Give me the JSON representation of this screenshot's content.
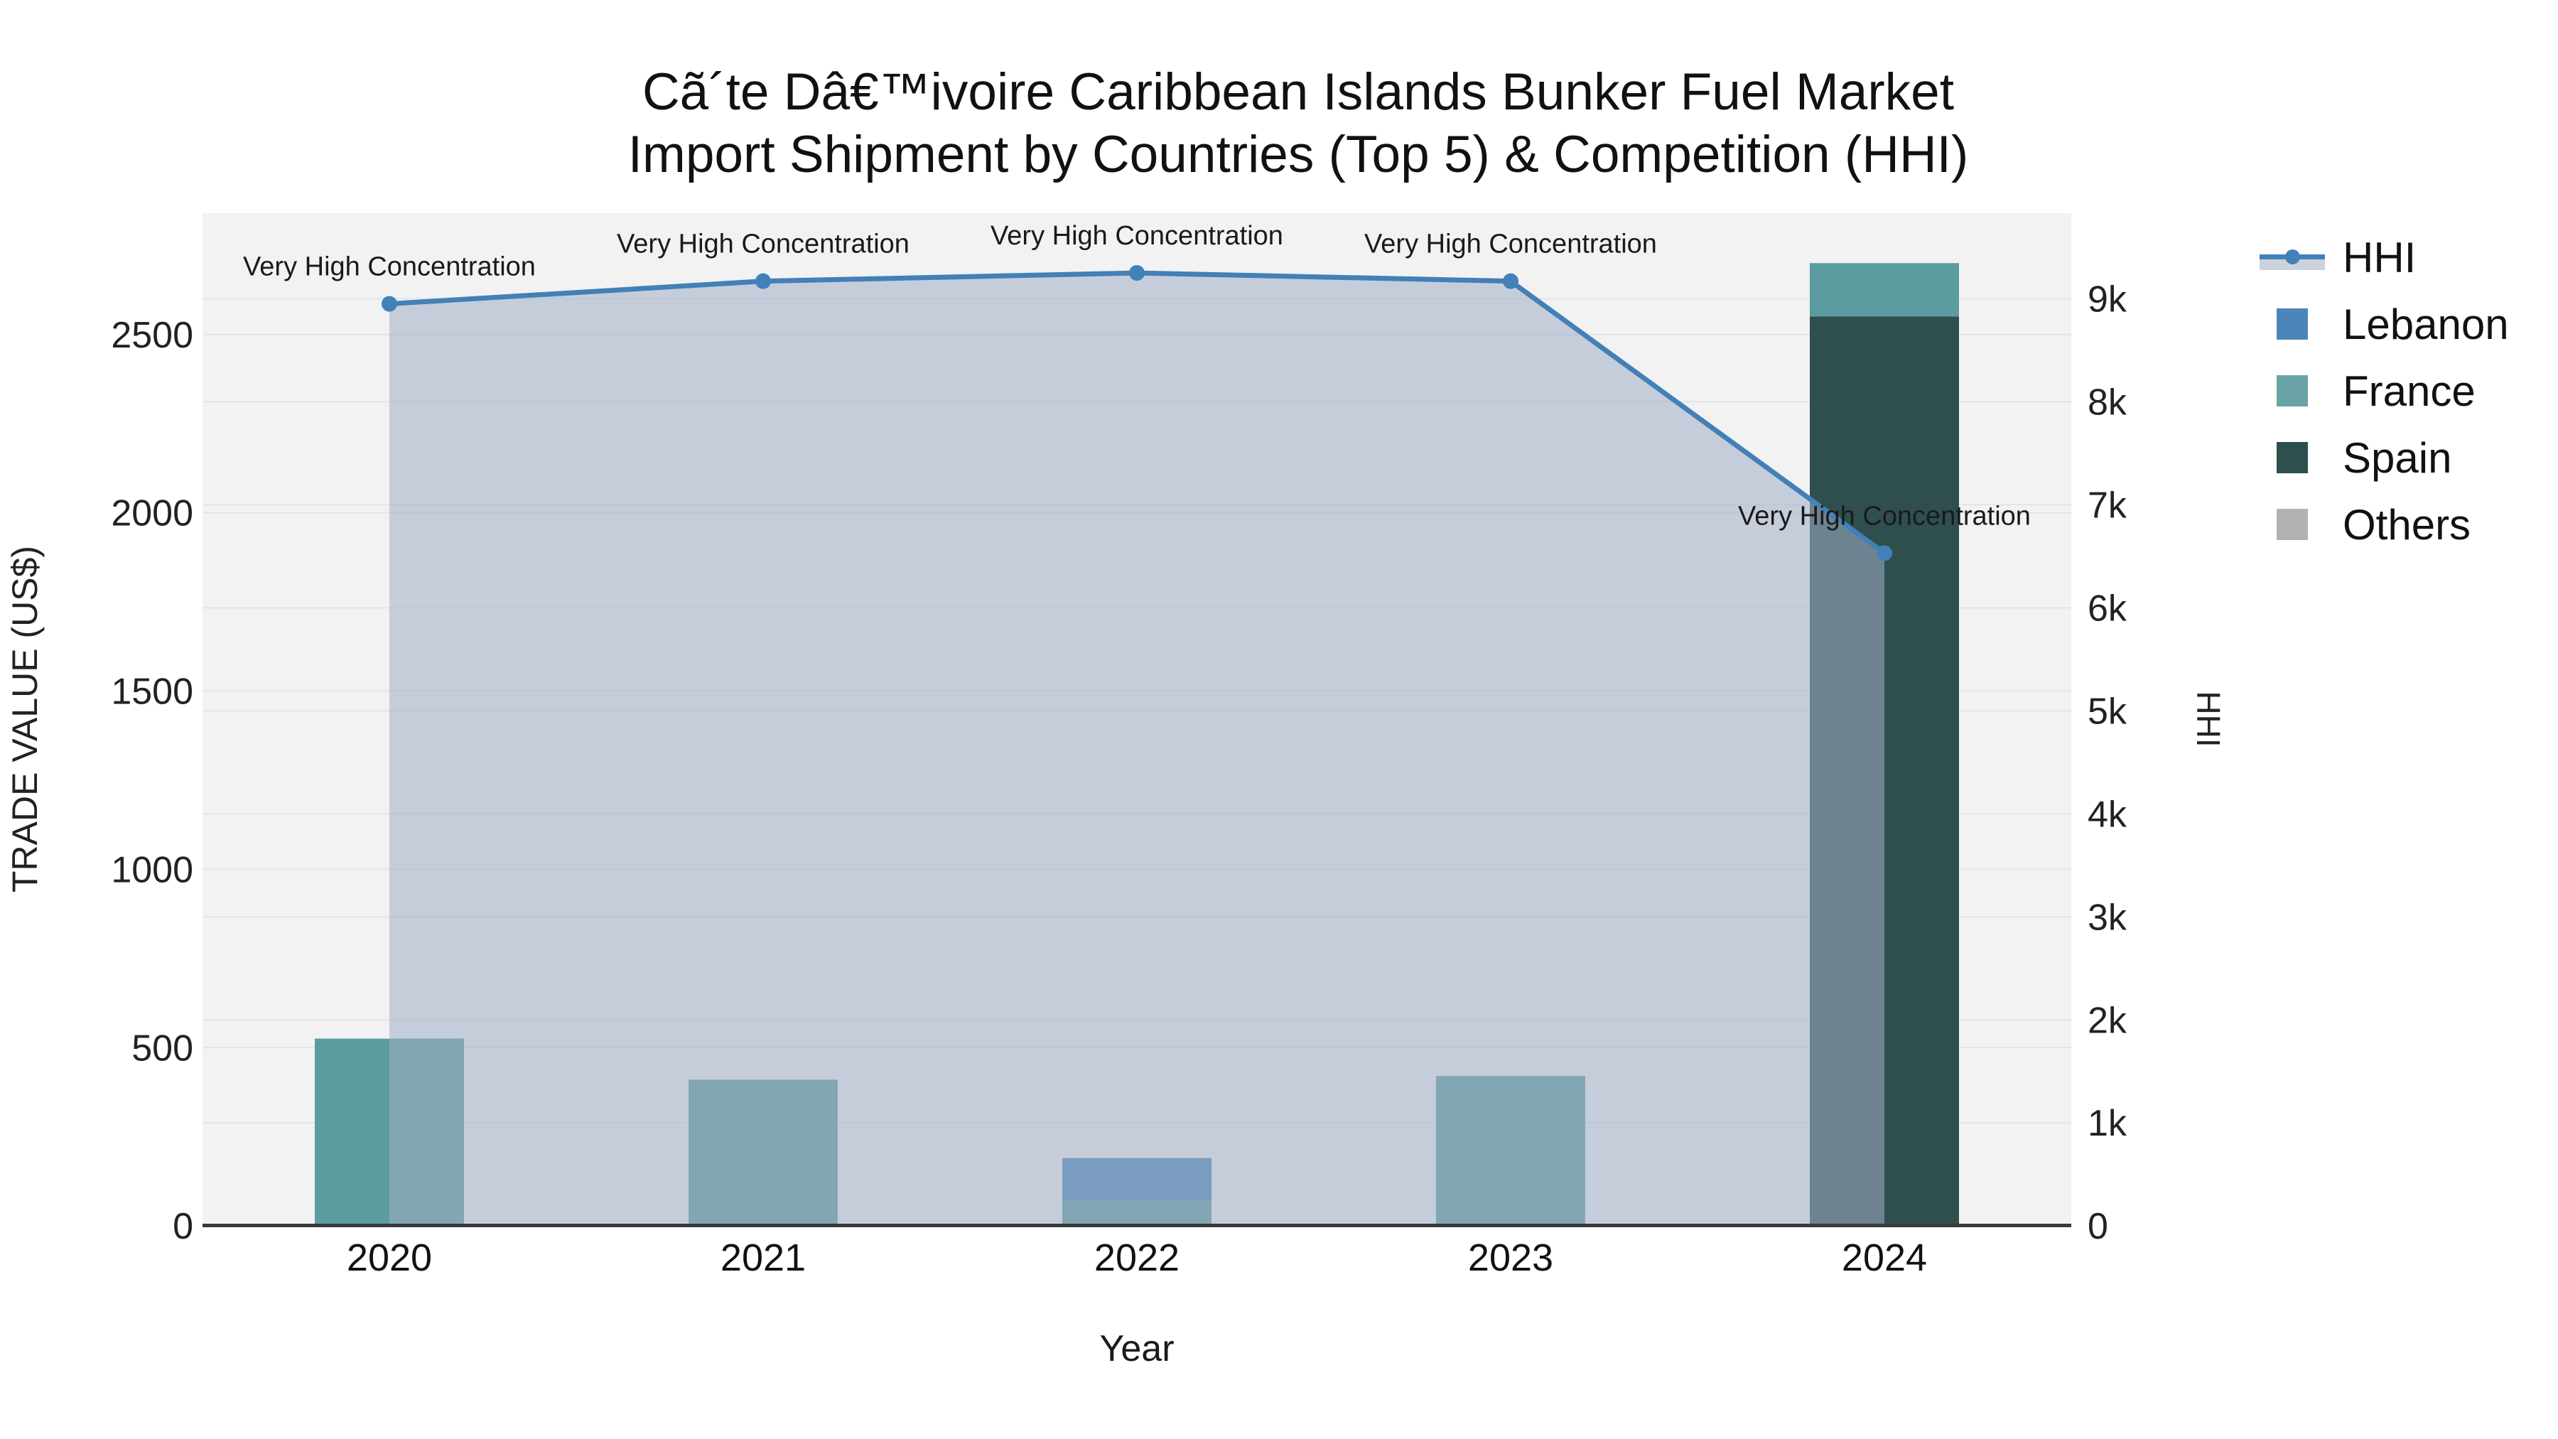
{
  "title": {
    "line1": "Cã´te Dâ€™ivoire Caribbean Islands Bunker Fuel Market",
    "line2": "Import Shipment by Countries (Top 5) & Competition (HHI)"
  },
  "chart_data": {
    "type": "combo: stacked bar + line (secondary axis)",
    "categories": [
      "2020",
      "2021",
      "2022",
      "2023",
      "2024"
    ],
    "bar_series": [
      {
        "name": "Spain",
        "color": "#2e4f4e",
        "values": [
          0,
          0,
          0,
          0,
          2550
        ]
      },
      {
        "name": "France",
        "color": "#5b9ca0",
        "values": [
          525,
          410,
          70,
          420,
          150
        ]
      },
      {
        "name": "Lebanon",
        "color": "#4a86b8",
        "values": [
          0,
          0,
          120,
          0,
          0
        ]
      },
      {
        "name": "Others",
        "color": "#b0b2b2",
        "values": [
          0,
          0,
          0,
          0,
          0
        ]
      }
    ],
    "line_series": {
      "name": "HHI",
      "color": "#4280b8",
      "fill_color": "rgba(163,175,196,0.55)",
      "values": [
        8950,
        9170,
        9250,
        9170,
        6530
      ]
    },
    "annotations": [
      {
        "x": "2020",
        "text": "Very High Concentration"
      },
      {
        "x": "2021",
        "text": "Very High Concentration"
      },
      {
        "x": "2022",
        "text": "Very High Concentration"
      },
      {
        "x": "2023",
        "text": "Very High Concentration"
      },
      {
        "x": "2024",
        "text": "Very High Concentration"
      }
    ],
    "left_axis": {
      "title": "TRADE VALUE (US$)",
      "tick_labels": [
        "0",
        "500",
        "1000",
        "1500",
        "2000",
        "2500"
      ],
      "tick_values": [
        0,
        500,
        1000,
        1500,
        2000,
        2500
      ],
      "range": [
        0,
        2840
      ]
    },
    "right_axis": {
      "title": "HHI",
      "tick_labels": [
        "0",
        "1k",
        "2k",
        "3k",
        "4k",
        "5k",
        "6k",
        "7k",
        "8k",
        "9k"
      ],
      "tick_values": [
        0,
        1000,
        2000,
        3000,
        4000,
        5000,
        6000,
        7000,
        8000,
        9000
      ],
      "range": [
        0,
        9830
      ]
    },
    "x_axis": {
      "title": "Year"
    },
    "legend": [
      {
        "label": "HHI",
        "swatch": "line",
        "color": "#4280b8",
        "fill": "#ccd3dd"
      },
      {
        "label": "Lebanon",
        "swatch": "square",
        "color": "#4a86b8"
      },
      {
        "label": "France",
        "swatch": "square",
        "color": "#6aa3a5"
      },
      {
        "label": "Spain",
        "swatch": "square",
        "color": "#2e4f4e"
      },
      {
        "label": "Others",
        "swatch": "square",
        "color": "#b0b2b2"
      }
    ],
    "layout_hints": {
      "plot_background": "#f2f2f3",
      "gridline_color": "#e4e4e7",
      "baseline_color": "#3a3a3a",
      "legend_position": "right",
      "grid": true
    }
  }
}
